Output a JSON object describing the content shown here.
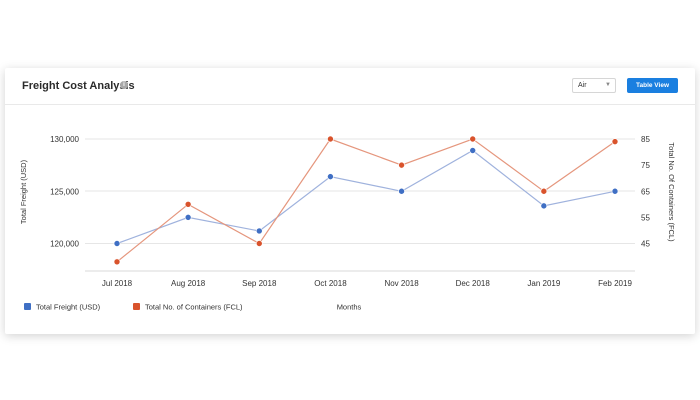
{
  "header": {
    "title": "Freight Cost Analysis",
    "info_glyph": "i",
    "mode_select": {
      "value": "Air"
    },
    "table_view_label": "Table View"
  },
  "colors": {
    "freight": "#3f6fc4",
    "freight_line": "#9fb2dd",
    "containers": "#d9532c",
    "containers_line": "#e5967d",
    "grid": "#e6e6e6",
    "axis_text": "#333333",
    "button": "#1a7fe0"
  },
  "chart_data": {
    "type": "line",
    "categories": [
      "Jul 2018",
      "Aug 2018",
      "Sep 2018",
      "Oct 2018",
      "Nov 2018",
      "Dec 2018",
      "Jan 2019",
      "Feb 2019"
    ],
    "xlabel": "Months",
    "ylabel": "Total Freight (USD)",
    "y2label": "Total No. Of Containers (FCL)",
    "ylim": [
      120000,
      130000
    ],
    "yticks": [
      "130,000",
      "125,000",
      "120,000"
    ],
    "y2lim": [
      45,
      85
    ],
    "y2ticks": [
      "85",
      "75",
      "65",
      "55",
      "45"
    ],
    "grid": true,
    "series": [
      {
        "name": "Total Freight (USD)",
        "axis": "left",
        "values": [
          120000,
          122500,
          121200,
          126400,
          125000,
          128900,
          123600,
          125000
        ]
      },
      {
        "name": "Total No. of Containers (FCL)",
        "axis": "right",
        "values": [
          38,
          60,
          45,
          85,
          75,
          85,
          65,
          84
        ]
      }
    ],
    "legend_position": "bottom-left"
  }
}
